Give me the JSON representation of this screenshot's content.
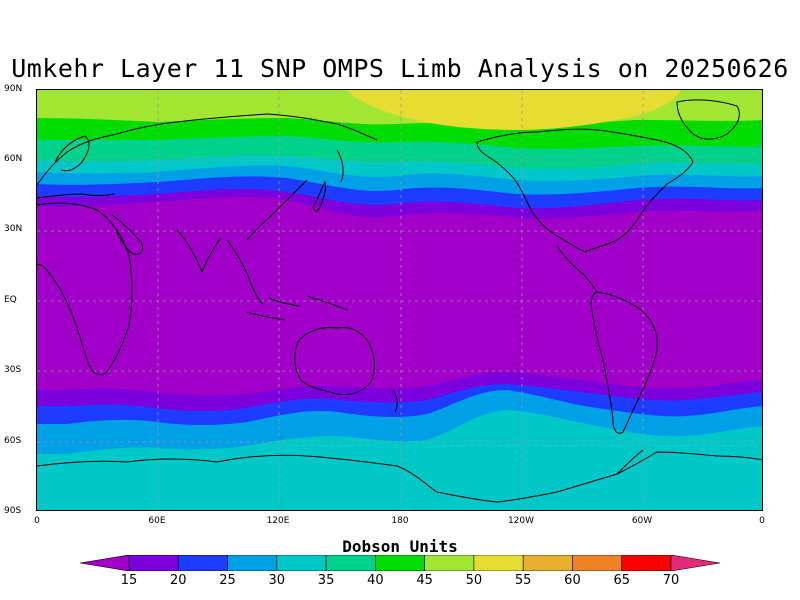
{
  "title": "Umkehr Layer 11 SNP OMPS Limb Analysis on 20250626",
  "y_ticks": [
    "90N",
    "60N",
    "30N",
    "EQ",
    "30S",
    "60S",
    "90S"
  ],
  "x_ticks": [
    "0",
    "60E",
    "120E",
    "180",
    "120W",
    "60W",
    "0"
  ],
  "colorbar": {
    "title": "Dobson Units",
    "levels": [
      "15",
      "20",
      "25",
      "30",
      "35",
      "40",
      "45",
      "50",
      "55",
      "60",
      "65",
      "70"
    ],
    "colors": [
      "#a000c8",
      "#7b00dc",
      "#1e3cff",
      "#00a0e6",
      "#00c8c8",
      "#00d28c",
      "#00dc00",
      "#a0e632",
      "#e6dc32",
      "#e6af2d",
      "#f08228",
      "#fa0000",
      "#e6287a"
    ]
  },
  "map_colors": {
    "le15": "#a000c8",
    "15-20": "#7b00dc",
    "20-25": "#1e3cff",
    "25-30": "#00a0e6",
    "30-35": "#00c8c8",
    "35-40": "#00d28c",
    "40-45": "#00dc00",
    "45-50": "#a0e632",
    "50-55": "#e6dc32"
  }
}
